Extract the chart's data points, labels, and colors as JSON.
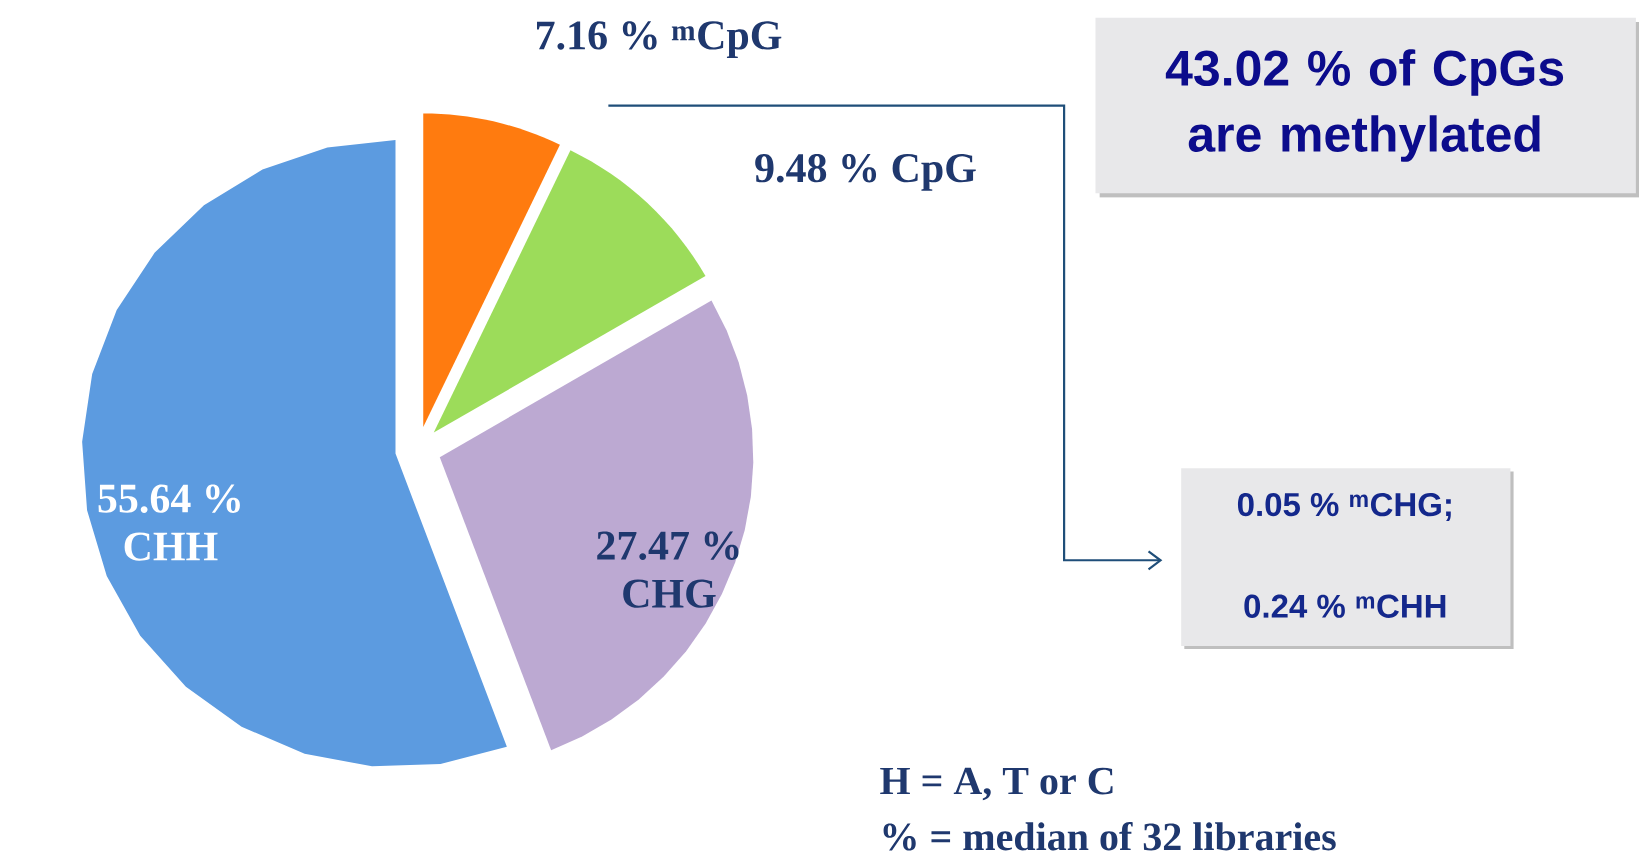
{
  "chart_data": {
    "type": "pie",
    "categories": [
      "$^{m}$CpG",
      "CpG",
      "CHG",
      "CHH"
    ],
    "values": [
      7.16,
      9.48,
      27.47,
      55.64
    ],
    "value_labels": [
      "7.16 %",
      "9.48 %",
      "27.47 %",
      "55.64 %"
    ],
    "colors": [
      "#ff7b0f",
      "#9cdc5a",
      "#bca9d2",
      "#5c9be0"
    ],
    "annotations": [
      "43.02 % of CpGs are methylated",
      "0.05 % $^{m}$CHG;",
      "0.24 % $^{m}$CHH",
      "H = A, T or C",
      "% = median of 32 libraries"
    ]
  }
}
